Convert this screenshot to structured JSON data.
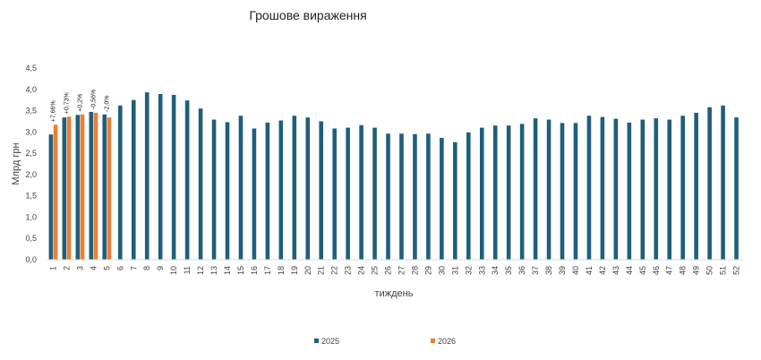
{
  "chart_data": {
    "type": "bar",
    "title": "Грошове вираження",
    "xlabel": "тиждень",
    "ylabel": "Млрд грн",
    "ylim": [
      0,
      4.5
    ],
    "yticks": [
      "0,0",
      "0,5",
      "1,0",
      "1,5",
      "2,0",
      "2,5",
      "3,0",
      "3,5",
      "4,0",
      "4,5"
    ],
    "grid": false,
    "legend_position": "bottom",
    "categories": [
      "1",
      "2",
      "3",
      "4",
      "5",
      "6",
      "7",
      "8",
      "9",
      "10",
      "11",
      "12",
      "13",
      "14",
      "15",
      "16",
      "17",
      "18",
      "19",
      "20",
      "21",
      "22",
      "23",
      "24",
      "25",
      "26",
      "27",
      "28",
      "29",
      "30",
      "31",
      "32",
      "33",
      "34",
      "35",
      "36",
      "37",
      "38",
      "39",
      "40",
      "41",
      "42",
      "43",
      "44",
      "45",
      "46",
      "47",
      "48",
      "49",
      "50",
      "51",
      "52"
    ],
    "series": [
      {
        "name": "2025",
        "color": "#1f5f7a",
        "values": [
          2.94,
          3.34,
          3.4,
          3.47,
          3.41,
          3.62,
          3.75,
          3.93,
          3.89,
          3.87,
          3.74,
          3.55,
          3.29,
          3.23,
          3.38,
          3.08,
          3.22,
          3.27,
          3.38,
          3.34,
          3.25,
          3.08,
          3.1,
          3.16,
          3.1,
          2.96,
          2.96,
          2.95,
          2.96,
          2.86,
          2.76,
          2.99,
          3.1,
          3.15,
          3.15,
          3.19,
          3.32,
          3.29,
          3.21,
          3.21,
          3.38,
          3.35,
          3.31,
          3.22,
          3.29,
          3.32,
          3.29,
          3.38,
          3.45,
          3.58,
          3.62,
          3.34
        ]
      },
      {
        "name": "2026",
        "color": "#ed7d31",
        "values": [
          3.17,
          3.36,
          3.41,
          3.45,
          3.34,
          null,
          null,
          null,
          null,
          null,
          null,
          null,
          null,
          null,
          null,
          null,
          null,
          null,
          null,
          null,
          null,
          null,
          null,
          null,
          null,
          null,
          null,
          null,
          null,
          null,
          null,
          null,
          null,
          null,
          null,
          null,
          null,
          null,
          null,
          null,
          null,
          null,
          null,
          null,
          null,
          null,
          null,
          null,
          null,
          null,
          null,
          null
        ]
      }
    ],
    "annotations": [
      "+7,66%",
      "+0,73%",
      "+0,2%",
      "-0,56%",
      "-2,0%"
    ]
  }
}
